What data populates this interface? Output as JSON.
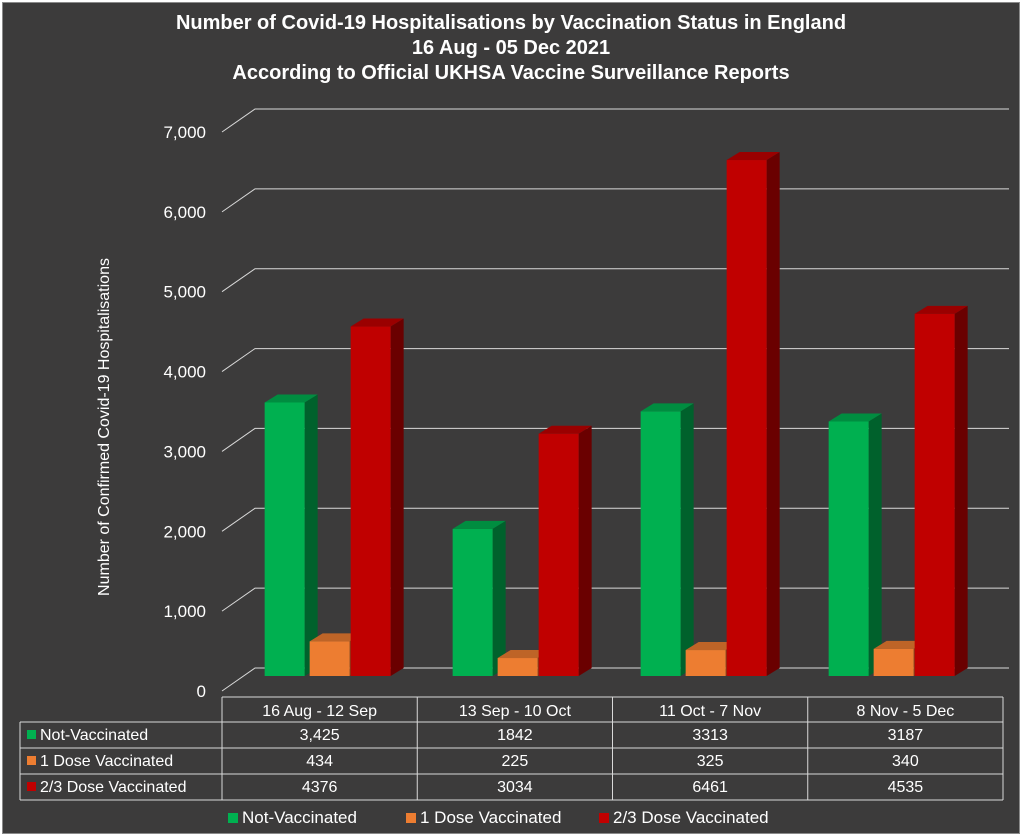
{
  "chart_data": {
    "type": "bar",
    "title": [
      "Number of Covid-19 Hospitalisations by Vaccination Status in England",
      "16 Aug - 05 Dec 2021",
      "According to Official UKHSA Vaccine Surveillance Reports"
    ],
    "ylabel": "Number of Confirmed Covid-19 Hospitalisations",
    "xlabel": "",
    "ylim": [
      0,
      7000
    ],
    "yticks": [
      0,
      1000,
      2000,
      3000,
      4000,
      5000,
      6000,
      7000
    ],
    "ytick_labels": [
      "0",
      "1,000",
      "2,000",
      "3,000",
      "4,000",
      "5,000",
      "6,000",
      "7,000"
    ],
    "grid": true,
    "legend_placement": "bottom",
    "style": "3d-clustered-column",
    "categories": [
      "16 Aug - 12 Sep",
      "13 Sep - 10 Oct",
      "11 Oct - 7 Nov",
      "8 Nov - 5 Dec"
    ],
    "series": [
      {
        "name": "Not-Vaccinated",
        "values": [
          3425,
          1842,
          3313,
          3187
        ],
        "labels": [
          "3,425",
          "1842",
          "3313",
          "3187"
        ],
        "color": "#00b050"
      },
      {
        "name": "1 Dose Vaccinated",
        "values": [
          434,
          225,
          325,
          340
        ],
        "labels": [
          "434",
          "225",
          "325",
          "340"
        ],
        "color": "#ed7d31"
      },
      {
        "name": "2/3 Dose Vaccinated",
        "values": [
          4376,
          3034,
          6461,
          4535
        ],
        "labels": [
          "4376",
          "3034",
          "6461",
          "4535"
        ],
        "color": "#c00000"
      }
    ],
    "data_table": true
  }
}
